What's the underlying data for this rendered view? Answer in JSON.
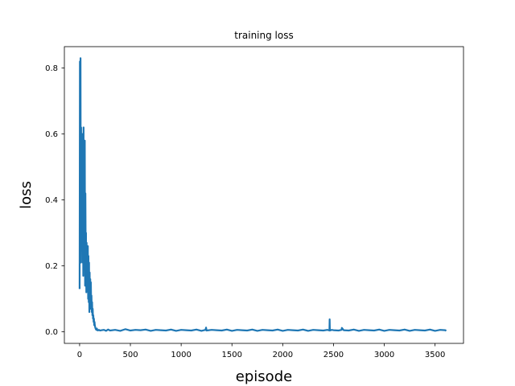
{
  "chart_data": {
    "type": "line",
    "title": "training loss",
    "xlabel": "episode",
    "ylabel": "loss",
    "xlim": [
      -150,
      3780
    ],
    "ylim": [
      -0.035,
      0.865
    ],
    "xticks": [
      0,
      500,
      1000,
      1500,
      2000,
      2500,
      3000,
      3500
    ],
    "yticks": [
      0.0,
      0.2,
      0.4,
      0.6,
      0.8
    ],
    "ytick_labels": [
      "0.0",
      "0.2",
      "0.4",
      "0.6",
      "0.8"
    ],
    "grid": false,
    "series": [
      {
        "color": "#1f77b4",
        "x": [
          0,
          3,
          6,
          9,
          12,
          15,
          18,
          21,
          24,
          27,
          30,
          33,
          36,
          39,
          42,
          45,
          48,
          51,
          54,
          57,
          60,
          63,
          66,
          69,
          72,
          75,
          78,
          81,
          84,
          87,
          90,
          93,
          96,
          99,
          102,
          105,
          108,
          111,
          114,
          117,
          120,
          123,
          126,
          129,
          132,
          135,
          138,
          141,
          144,
          147,
          150,
          155,
          160,
          165,
          170,
          175,
          180,
          190,
          200,
          220,
          240,
          260,
          280,
          300,
          350,
          400,
          450,
          500,
          550,
          600,
          650,
          700,
          750,
          800,
          850,
          900,
          950,
          1000,
          1050,
          1100,
          1150,
          1200,
          1240,
          1245,
          1250,
          1300,
          1350,
          1400,
          1450,
          1500,
          1550,
          1600,
          1650,
          1700,
          1750,
          1800,
          1850,
          1900,
          1950,
          2000,
          2050,
          2100,
          2150,
          2200,
          2250,
          2300,
          2350,
          2400,
          2440,
          2460,
          2462,
          2464,
          2466,
          2480,
          2500,
          2550,
          2580,
          2582,
          2600,
          2650,
          2700,
          2750,
          2800,
          2850,
          2900,
          2950,
          3000,
          3050,
          3100,
          3150,
          3200,
          3250,
          3300,
          3350,
          3400,
          3450,
          3500,
          3550,
          3600,
          3610
        ],
        "y": [
          0.13,
          0.82,
          0.28,
          0.83,
          0.21,
          0.62,
          0.33,
          0.47,
          0.26,
          0.6,
          0.21,
          0.49,
          0.17,
          0.62,
          0.28,
          0.56,
          0.19,
          0.58,
          0.14,
          0.42,
          0.24,
          0.3,
          0.12,
          0.27,
          0.17,
          0.22,
          0.13,
          0.26,
          0.1,
          0.23,
          0.09,
          0.21,
          0.06,
          0.18,
          0.08,
          0.16,
          0.07,
          0.15,
          0.08,
          0.11,
          0.06,
          0.09,
          0.05,
          0.07,
          0.04,
          0.05,
          0.03,
          0.04,
          0.02,
          0.03,
          0.02,
          0.012,
          0.008,
          0.006,
          0.01,
          0.005,
          0.004,
          0.006,
          0.004,
          0.005,
          0.006,
          0.003,
          0.007,
          0.004,
          0.006,
          0.003,
          0.008,
          0.004,
          0.006,
          0.005,
          0.007,
          0.003,
          0.006,
          0.005,
          0.004,
          0.007,
          0.003,
          0.006,
          0.005,
          0.004,
          0.007,
          0.003,
          0.006,
          0.013,
          0.004,
          0.006,
          0.005,
          0.004,
          0.007,
          0.003,
          0.006,
          0.005,
          0.004,
          0.007,
          0.003,
          0.006,
          0.005,
          0.004,
          0.007,
          0.003,
          0.006,
          0.005,
          0.004,
          0.007,
          0.003,
          0.006,
          0.005,
          0.004,
          0.006,
          0.004,
          0.038,
          0.006,
          0.004,
          0.006,
          0.005,
          0.004,
          0.006,
          0.012,
          0.005,
          0.004,
          0.007,
          0.003,
          0.006,
          0.005,
          0.004,
          0.007,
          0.003,
          0.006,
          0.005,
          0.004,
          0.007,
          0.003,
          0.006,
          0.005,
          0.004,
          0.007,
          0.003,
          0.006,
          0.005,
          0.003
        ]
      }
    ]
  }
}
